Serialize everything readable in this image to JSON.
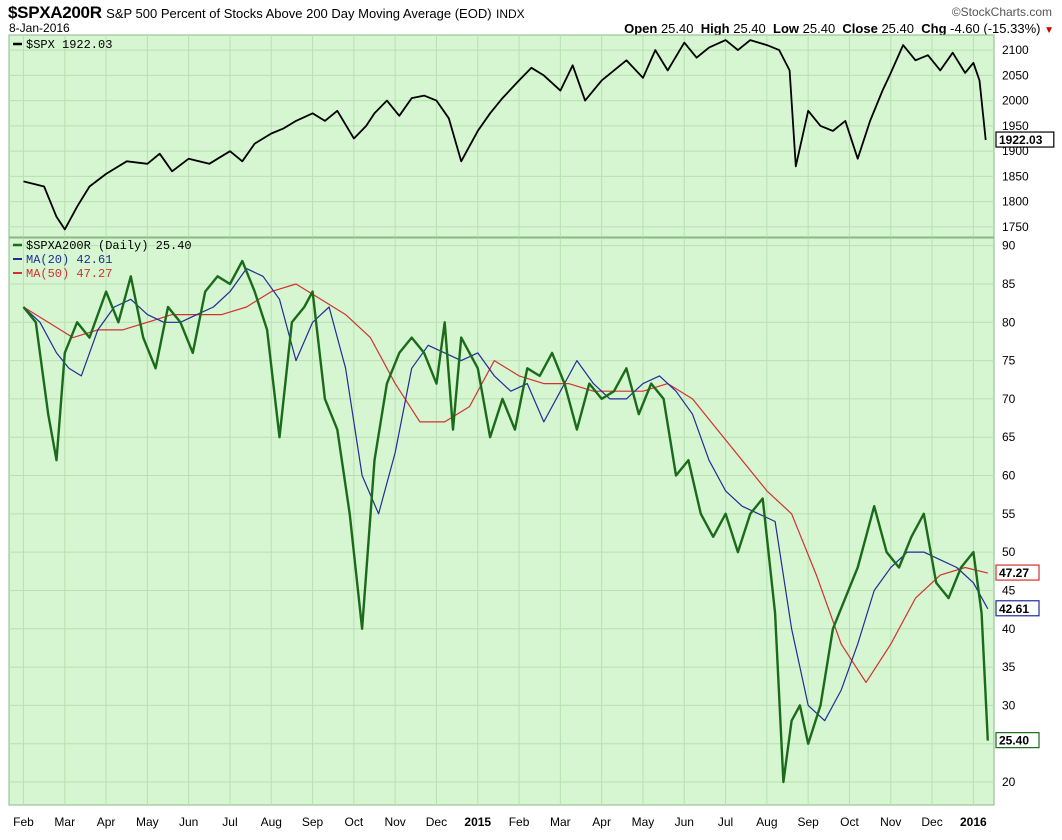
{
  "header": {
    "ticker": "$SPXA200R",
    "description": "S&P 500 Percent of Stocks Above 200 Day Moving Average (EOD)",
    "exchange": "INDX",
    "date": "8-Jan-2016",
    "brand": "©StockCharts.com",
    "open_label": "Open",
    "open": "25.40",
    "high_label": "High",
    "high": "25.40",
    "low_label": "Low",
    "low": "25.40",
    "close_label": "Close",
    "close": "25.40",
    "chg_label": "Chg",
    "chg": "-4.60 (-15.33%)",
    "chg_arrow": "▼"
  },
  "colors": {
    "background": "#d6f5d1",
    "grid": "#b8e0b2",
    "spx_line": "#000000",
    "spxa200r_line": "#1a6b1a",
    "ma20_line": "#1f2d9a",
    "ma50_line": "#d43030"
  },
  "chart_data": [
    {
      "type": "line",
      "legend": "$SPX 1922.03",
      "last_value_label": "1922.03",
      "y_ticks": [
        1750,
        1800,
        1850,
        1900,
        1950,
        2000,
        2050,
        2100
      ],
      "ylim": [
        1730,
        2130
      ],
      "x_labels": [
        "Feb",
        "Mar",
        "Apr",
        "May",
        "Jun",
        "Jul",
        "Aug",
        "Sep",
        "Oct",
        "Nov",
        "Dec",
        "2015",
        "Feb",
        "Mar",
        "Apr",
        "May",
        "Jun",
        "Jul",
        "Aug",
        "Sep",
        "Oct",
        "Nov",
        "Dec",
        "2016"
      ],
      "series": [
        {
          "name": "$SPX",
          "x": [
            0,
            0.5,
            0.8,
            1.0,
            1.3,
            1.6,
            2.0,
            2.5,
            3.0,
            3.3,
            3.6,
            4.0,
            4.5,
            5.0,
            5.3,
            5.6,
            6.0,
            6.3,
            6.6,
            7.0,
            7.3,
            7.6,
            8.0,
            8.3,
            8.5,
            8.8,
            9.1,
            9.4,
            9.7,
            10.0,
            10.3,
            10.6,
            11.0,
            11.3,
            11.6,
            12.0,
            12.3,
            12.6,
            13.0,
            13.3,
            13.6,
            14.0,
            14.3,
            14.6,
            15.0,
            15.3,
            15.6,
            16.0,
            16.3,
            16.6,
            17.0,
            17.3,
            17.6,
            18.0,
            18.3,
            18.55,
            18.7,
            19.0,
            19.3,
            19.6,
            19.9,
            20.2,
            20.5,
            20.8,
            21.0,
            21.3,
            21.6,
            21.9,
            22.2,
            22.5,
            22.8,
            23.0,
            23.15,
            23.3
          ],
          "values": [
            1840,
            1830,
            1770,
            1745,
            1790,
            1830,
            1855,
            1880,
            1875,
            1895,
            1860,
            1885,
            1875,
            1900,
            1880,
            1915,
            1935,
            1945,
            1960,
            1975,
            1960,
            1980,
            1925,
            1950,
            1975,
            2000,
            1970,
            2005,
            2010,
            2000,
            1965,
            1880,
            1940,
            1975,
            2005,
            2040,
            2065,
            2050,
            2020,
            2070,
            2000,
            2040,
            2060,
            2080,
            2045,
            2100,
            2060,
            2115,
            2085,
            2105,
            2120,
            2100,
            2120,
            2110,
            2100,
            2060,
            1870,
            1980,
            1950,
            1940,
            1960,
            1885,
            1960,
            2020,
            2055,
            2110,
            2080,
            2090,
            2060,
            2095,
            2055,
            2075,
            2040,
            1922
          ]
        }
      ]
    },
    {
      "type": "line",
      "legend_main": "$SPXA200R (Daily) 25.40",
      "legend_ma20": "MA(20) 42.61",
      "legend_ma50": "MA(50) 47.27",
      "last_value_label": "25.40",
      "ma20_label": "42.61",
      "ma50_label": "47.27",
      "y_ticks": [
        20,
        25,
        30,
        35,
        40,
        45,
        50,
        55,
        60,
        65,
        70,
        75,
        80,
        85,
        90
      ],
      "ylim": [
        17,
        91
      ],
      "series": [
        {
          "name": "$SPXA200R (Daily)",
          "x": [
            0,
            0.3,
            0.6,
            0.8,
            1.0,
            1.3,
            1.6,
            2.0,
            2.3,
            2.6,
            2.9,
            3.2,
            3.5,
            3.8,
            4.1,
            4.4,
            4.7,
            5.0,
            5.3,
            5.6,
            5.9,
            6.2,
            6.5,
            6.8,
            7.0,
            7.3,
            7.6,
            7.9,
            8.2,
            8.5,
            8.8,
            9.1,
            9.4,
            9.7,
            10.0,
            10.2,
            10.4,
            10.6,
            10.8,
            11.0,
            11.3,
            11.6,
            11.9,
            12.2,
            12.5,
            12.8,
            13.1,
            13.4,
            13.7,
            14.0,
            14.3,
            14.6,
            14.9,
            15.2,
            15.5,
            15.8,
            16.1,
            16.4,
            16.7,
            17.0,
            17.3,
            17.6,
            17.9,
            18.2,
            18.4,
            18.6,
            18.8,
            19.0,
            19.3,
            19.6,
            19.9,
            20.2,
            20.4,
            20.6,
            20.9,
            21.2,
            21.5,
            21.8,
            22.1,
            22.4,
            22.7,
            23.0,
            23.2,
            23.35
          ],
          "values": [
            82,
            80,
            68,
            62,
            76,
            80,
            78,
            84,
            80,
            86,
            78,
            74,
            82,
            80,
            76,
            84,
            86,
            85,
            88,
            84,
            79,
            65,
            80,
            82,
            84,
            70,
            66,
            55,
            40,
            62,
            72,
            76,
            78,
            76,
            72,
            80,
            66,
            78,
            76,
            74,
            65,
            70,
            66,
            74,
            73,
            76,
            72,
            66,
            72,
            70,
            71,
            74,
            68,
            72,
            70,
            60,
            62,
            55,
            52,
            55,
            50,
            55,
            57,
            42,
            20,
            28,
            30,
            25,
            30,
            40,
            44,
            48,
            52,
            56,
            50,
            48,
            52,
            55,
            46,
            44,
            48,
            50,
            42,
            25.4
          ]
        },
        {
          "name": "MA(20)",
          "x": [
            0,
            0.4,
            0.8,
            1.1,
            1.4,
            1.8,
            2.2,
            2.6,
            3.0,
            3.4,
            3.8,
            4.2,
            4.6,
            5.0,
            5.4,
            5.8,
            6.2,
            6.6,
            7.0,
            7.4,
            7.8,
            8.2,
            8.6,
            9.0,
            9.4,
            9.8,
            10.2,
            10.6,
            11.0,
            11.4,
            11.8,
            12.2,
            12.6,
            13.0,
            13.4,
            13.8,
            14.2,
            14.6,
            15.0,
            15.4,
            15.8,
            16.2,
            16.6,
            17.0,
            17.4,
            17.8,
            18.2,
            18.6,
            19.0,
            19.4,
            19.8,
            20.2,
            20.6,
            21.0,
            21.4,
            21.8,
            22.2,
            22.6,
            23.0,
            23.35
          ],
          "values": [
            82,
            80,
            76,
            74,
            73,
            79,
            82,
            83,
            81,
            80,
            80,
            81,
            82,
            84,
            87,
            86,
            83,
            75,
            80,
            82,
            74,
            60,
            55,
            63,
            74,
            77,
            76,
            75,
            76,
            73,
            71,
            72,
            67,
            71,
            75,
            72,
            70,
            70,
            72,
            73,
            71,
            68,
            62,
            58,
            56,
            55,
            54,
            40,
            30,
            28,
            32,
            38,
            45,
            48,
            50,
            50,
            49,
            48,
            46,
            42.61
          ]
        },
        {
          "name": "MA(50)",
          "x": [
            0,
            0.6,
            1.2,
            1.8,
            2.4,
            3.0,
            3.6,
            4.2,
            4.8,
            5.4,
            6.0,
            6.6,
            7.2,
            7.8,
            8.4,
            9.0,
            9.6,
            10.2,
            10.8,
            11.4,
            12.0,
            12.6,
            13.2,
            13.8,
            14.4,
            15.0,
            15.6,
            16.2,
            16.8,
            17.4,
            18.0,
            18.6,
            19.2,
            19.8,
            20.4,
            21.0,
            21.6,
            22.2,
            22.8,
            23.35
          ],
          "values": [
            82,
            80,
            78,
            79,
            79,
            80,
            81,
            81,
            81,
            82,
            84,
            85,
            83,
            81,
            78,
            72,
            67,
            67,
            69,
            75,
            73,
            72,
            72,
            71,
            71,
            71,
            72,
            70,
            66,
            62,
            58,
            55,
            47,
            38,
            33,
            38,
            44,
            47,
            48,
            47.27
          ]
        }
      ]
    }
  ]
}
